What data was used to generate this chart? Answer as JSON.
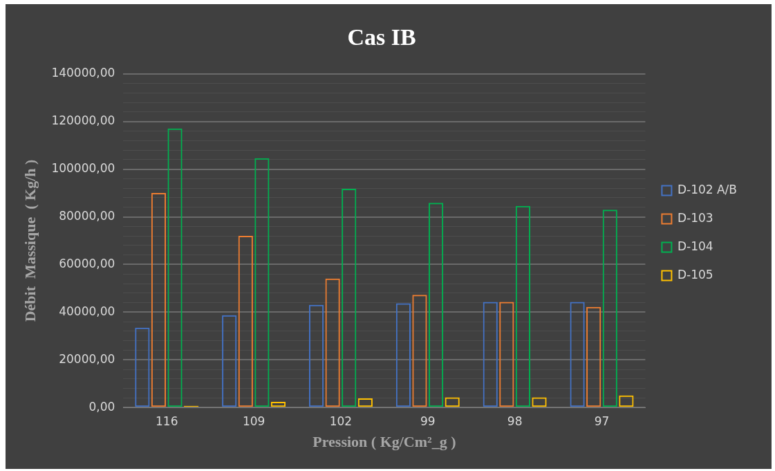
{
  "chart_data": {
    "type": "bar",
    "title": "Cas IB",
    "xlabel": "Pression ( Kg/Cm²_g )",
    "ylabel": "Débit  Massique  ( Kg/h )",
    "categories": [
      "116",
      "109",
      "102",
      "99",
      "98",
      "97"
    ],
    "series": [
      {
        "name": "D-102 A/B",
        "color": "#4472c4",
        "values": [
          33500,
          38700,
          43100,
          43700,
          44300,
          44300
        ]
      },
      {
        "name": "D-103",
        "color": "#ed7d31",
        "values": [
          90000,
          72000,
          54100,
          47300,
          44300,
          42200
        ]
      },
      {
        "name": "D-104",
        "color": "#00b050",
        "values": [
          117100,
          104600,
          91800,
          85900,
          84600,
          83000
        ]
      },
      {
        "name": "D-105",
        "color": "#ffc000",
        "values": [
          700,
          2400,
          3800,
          4300,
          4300,
          5100
        ]
      }
    ],
    "ylim": [
      0,
      140000
    ],
    "yticks": [
      {
        "value": 0,
        "label": "0,00"
      },
      {
        "value": 4000,
        "label": null
      },
      {
        "value": 8000,
        "label": null
      },
      {
        "value": 12000,
        "label": null
      },
      {
        "value": 16000,
        "label": null
      },
      {
        "value": 20000,
        "label": "20000,00"
      },
      {
        "value": 24000,
        "label": null
      },
      {
        "value": 28000,
        "label": null
      },
      {
        "value": 32000,
        "label": null
      },
      {
        "value": 36000,
        "label": null
      },
      {
        "value": 40000,
        "label": "40000,00"
      },
      {
        "value": 44000,
        "label": null
      },
      {
        "value": 48000,
        "label": null
      },
      {
        "value": 52000,
        "label": null
      },
      {
        "value": 56000,
        "label": null
      },
      {
        "value": 60000,
        "label": "60000,00"
      },
      {
        "value": 64000,
        "label": null
      },
      {
        "value": 68000,
        "label": null
      },
      {
        "value": 72000,
        "label": null
      },
      {
        "value": 76000,
        "label": null
      },
      {
        "value": 80000,
        "label": "80000,00"
      },
      {
        "value": 84000,
        "label": null
      },
      {
        "value": 88000,
        "label": null
      },
      {
        "value": 92000,
        "label": null
      },
      {
        "value": 96000,
        "label": null
      },
      {
        "value": 100000,
        "label": "100000,00"
      },
      {
        "value": 104000,
        "label": null
      },
      {
        "value": 108000,
        "label": null
      },
      {
        "value": 112000,
        "label": null
      },
      {
        "value": 116000,
        "label": null
      },
      {
        "value": 120000,
        "label": "120000,00"
      },
      {
        "value": 124000,
        "label": null
      },
      {
        "value": 128000,
        "label": null
      },
      {
        "value": 132000,
        "label": null
      },
      {
        "value": 136000,
        "label": null
      },
      {
        "value": 140000,
        "label": "140000,00"
      }
    ],
    "grid": "y",
    "legend": "right"
  }
}
